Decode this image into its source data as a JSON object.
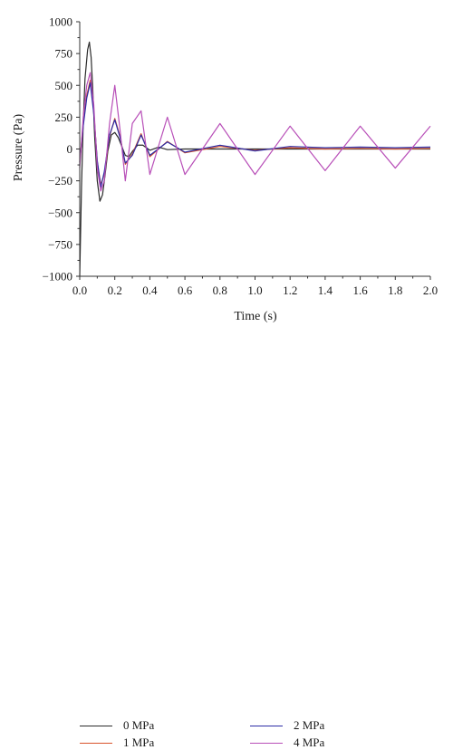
{
  "chart_data": {
    "type": "line",
    "xlabel": "Time (s)",
    "ylabel": "Pressure (Pa)",
    "xlim": [
      0.0,
      2.0
    ],
    "ylim": [
      -1000,
      1000
    ],
    "x_ticks": [
      "0.0",
      "0.2",
      "0.4",
      "0.6",
      "0.8",
      "1.0",
      "1.2",
      "1.4",
      "1.6",
      "1.8",
      "2.0"
    ],
    "y_ticks": [
      "1000",
      "750",
      "500",
      "250",
      "0",
      "−250",
      "−500",
      "−750",
      "−1000"
    ],
    "grid": false,
    "legend_position": "bottom",
    "series": [
      {
        "name": "0 MPa",
        "color": "#2b2b2b",
        "x": [
          0.0,
          0.01,
          0.02,
          0.03,
          0.045,
          0.055,
          0.065,
          0.075,
          0.085,
          0.1,
          0.115,
          0.13,
          0.145,
          0.16,
          0.18,
          0.2,
          0.22,
          0.24,
          0.26,
          0.28,
          0.3,
          0.33,
          0.36,
          0.4,
          0.45,
          0.5,
          0.6,
          0.8,
          1.0,
          1.2,
          1.4,
          1.6,
          1.8,
          2.0
        ],
        "y": [
          -1000,
          -300,
          200,
          550,
          780,
          840,
          720,
          450,
          100,
          -250,
          -410,
          -360,
          -200,
          -20,
          110,
          130,
          90,
          20,
          -50,
          -60,
          -20,
          30,
          30,
          -10,
          15,
          -5,
          0,
          0,
          0,
          0,
          0,
          0,
          0,
          0
        ]
      },
      {
        "name": "1 MPa",
        "color": "#d9542b",
        "x": [
          0.0,
          0.02,
          0.04,
          0.06,
          0.08,
          0.1,
          0.12,
          0.14,
          0.17,
          0.2,
          0.23,
          0.26,
          0.3,
          0.35,
          0.4,
          0.5,
          0.6,
          0.8,
          1.0,
          1.2,
          1.4,
          1.6,
          1.8,
          2.0
        ],
        "y": [
          -100,
          200,
          420,
          540,
          300,
          -100,
          -280,
          -200,
          100,
          240,
          100,
          -120,
          -40,
          120,
          -60,
          60,
          -30,
          20,
          -10,
          10,
          0,
          5,
          0,
          5
        ]
      },
      {
        "name": "2 MPa",
        "color": "#2c2ca6",
        "x": [
          0.0,
          0.02,
          0.04,
          0.06,
          0.08,
          0.1,
          0.12,
          0.14,
          0.17,
          0.2,
          0.23,
          0.26,
          0.3,
          0.35,
          0.4,
          0.5,
          0.6,
          0.8,
          1.0,
          1.2,
          1.4,
          1.6,
          1.8,
          2.0
        ],
        "y": [
          -100,
          180,
          400,
          520,
          280,
          -90,
          -300,
          -180,
          110,
          230,
          90,
          -110,
          -50,
          110,
          -50,
          55,
          -25,
          30,
          -15,
          20,
          10,
          15,
          10,
          15
        ]
      },
      {
        "name": "4 MPa",
        "color": "#b84fb8",
        "x": [
          0.0,
          0.02,
          0.04,
          0.06,
          0.08,
          0.1,
          0.12,
          0.14,
          0.17,
          0.2,
          0.23,
          0.26,
          0.3,
          0.35,
          0.4,
          0.5,
          0.6,
          0.8,
          1.0,
          1.2,
          1.4,
          1.6,
          1.8,
          2.0
        ],
        "y": [
          -150,
          250,
          500,
          600,
          350,
          -150,
          -330,
          -250,
          200,
          500,
          150,
          -250,
          200,
          300,
          -200,
          250,
          -200,
          200,
          -200,
          180,
          -170,
          180,
          -150,
          180
        ]
      }
    ]
  }
}
